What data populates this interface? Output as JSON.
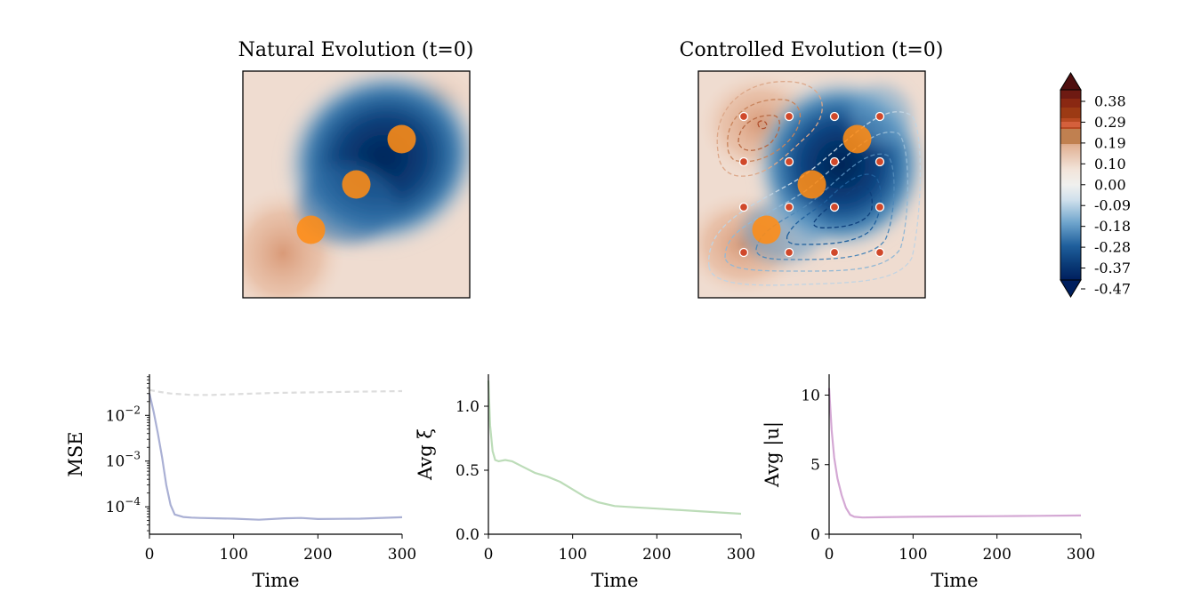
{
  "chart_data": [
    {
      "type": "heatmap",
      "title": "Natural Evolution (t=0)",
      "vortices": [
        {
          "x": 0.7,
          "y": 0.7
        },
        {
          "x": 0.5,
          "y": 0.5
        },
        {
          "x": 0.3,
          "y": 0.3
        }
      ]
    },
    {
      "type": "heatmap",
      "title": "Controlled Evolution (t=0)",
      "vortices": [
        {
          "x": 0.7,
          "y": 0.7
        },
        {
          "x": 0.5,
          "y": 0.5
        },
        {
          "x": 0.3,
          "y": 0.3
        }
      ],
      "sensors": [
        {
          "x": 0.2,
          "y": 0.8
        },
        {
          "x": 0.4,
          "y": 0.8
        },
        {
          "x": 0.6,
          "y": 0.8
        },
        {
          "x": 0.8,
          "y": 0.8
        },
        {
          "x": 0.2,
          "y": 0.6
        },
        {
          "x": 0.4,
          "y": 0.6
        },
        {
          "x": 0.6,
          "y": 0.6
        },
        {
          "x": 0.8,
          "y": 0.6
        },
        {
          "x": 0.2,
          "y": 0.4
        },
        {
          "x": 0.4,
          "y": 0.4
        },
        {
          "x": 0.6,
          "y": 0.4
        },
        {
          "x": 0.8,
          "y": 0.4
        },
        {
          "x": 0.2,
          "y": 0.2
        },
        {
          "x": 0.4,
          "y": 0.2
        },
        {
          "x": 0.6,
          "y": 0.2
        },
        {
          "x": 0.8,
          "y": 0.2
        }
      ],
      "contours": "dashed"
    },
    {
      "type": "line",
      "xlabel": "Time",
      "ylabel": "MSE",
      "yscale": "log",
      "xlim": [
        0,
        300
      ],
      "ylim_log10": [
        -4.6,
        -1.1
      ],
      "xticks": [
        "0",
        "100",
        "200",
        "300"
      ],
      "yticks": [
        {
          "value": 0.01,
          "base": "10",
          "exp": "−2"
        },
        {
          "value": 0.001,
          "base": "10",
          "exp": "−3"
        },
        {
          "value": 0.0001,
          "base": "10",
          "exp": "−4"
        }
      ],
      "series": [
        {
          "color": "#aab0d4",
          "dash": false,
          "x": [
            0,
            5,
            10,
            15,
            20,
            25,
            30,
            40,
            50,
            60,
            80,
            100,
            130,
            160,
            180,
            200,
            250,
            300
          ],
          "y": [
            0.03,
            0.012,
            0.004,
            0.0012,
            0.0003,
            0.00011,
            6.8e-05,
            6e-05,
            5.8e-05,
            5.7e-05,
            5.6e-05,
            5.5e-05,
            5.2e-05,
            5.6e-05,
            5.7e-05,
            5.4e-05,
            5.5e-05,
            5.9e-05
          ]
        },
        {
          "color": "#dddddd",
          "dash": true,
          "x": [
            0,
            10,
            25,
            50,
            75,
            100,
            150,
            200,
            250,
            300
          ],
          "y": [
            0.036,
            0.033,
            0.03,
            0.028,
            0.028,
            0.029,
            0.031,
            0.032,
            0.033,
            0.034
          ]
        }
      ]
    },
    {
      "type": "line",
      "xlabel": "Time",
      "ylabel": "Avg ξ̇",
      "xlim": [
        0,
        300
      ],
      "ylim": [
        0,
        1.25
      ],
      "xticks": [
        "0",
        "100",
        "200",
        "300"
      ],
      "yticks": [
        "0.0",
        "0.5",
        "1.0"
      ],
      "series": [
        {
          "color": "#bcdcb8",
          "dash": false,
          "x": [
            0,
            2,
            5,
            8,
            12,
            20,
            28,
            40,
            55,
            70,
            85,
            100,
            115,
            130,
            150,
            175,
            200,
            250,
            300
          ],
          "y": [
            1.2,
            0.85,
            0.65,
            0.58,
            0.57,
            0.58,
            0.57,
            0.53,
            0.48,
            0.45,
            0.41,
            0.35,
            0.29,
            0.25,
            0.22,
            0.21,
            0.2,
            0.18,
            0.16
          ]
        }
      ]
    },
    {
      "type": "line",
      "xlabel": "Time",
      "ylabel": "Avg |u|",
      "xlim": [
        0,
        300
      ],
      "ylim": [
        0,
        11.5
      ],
      "xticks": [
        "0",
        "100",
        "200",
        "300"
      ],
      "yticks": [
        "0",
        "5",
        "10"
      ],
      "series": [
        {
          "color": "#d4a8d4",
          "dash": false,
          "x": [
            0,
            3,
            6,
            10,
            15,
            20,
            25,
            30,
            40,
            60,
            100,
            150,
            200,
            250,
            300
          ],
          "y": [
            10.5,
            7.5,
            5.5,
            4.0,
            2.8,
            1.9,
            1.4,
            1.25,
            1.2,
            1.22,
            1.25,
            1.28,
            1.3,
            1.32,
            1.35
          ]
        }
      ]
    }
  ],
  "colorbar": {
    "ticks": [
      "0.38",
      "0.29",
      "0.19",
      "0.10",
      "0.00",
      "-0.09",
      "-0.18",
      "-0.28",
      "-0.37",
      "-0.47"
    ],
    "colors": {
      "dark_blue": "#001f5e",
      "white": "#f4f1ee",
      "dark_red": "#4e0e0e"
    }
  }
}
